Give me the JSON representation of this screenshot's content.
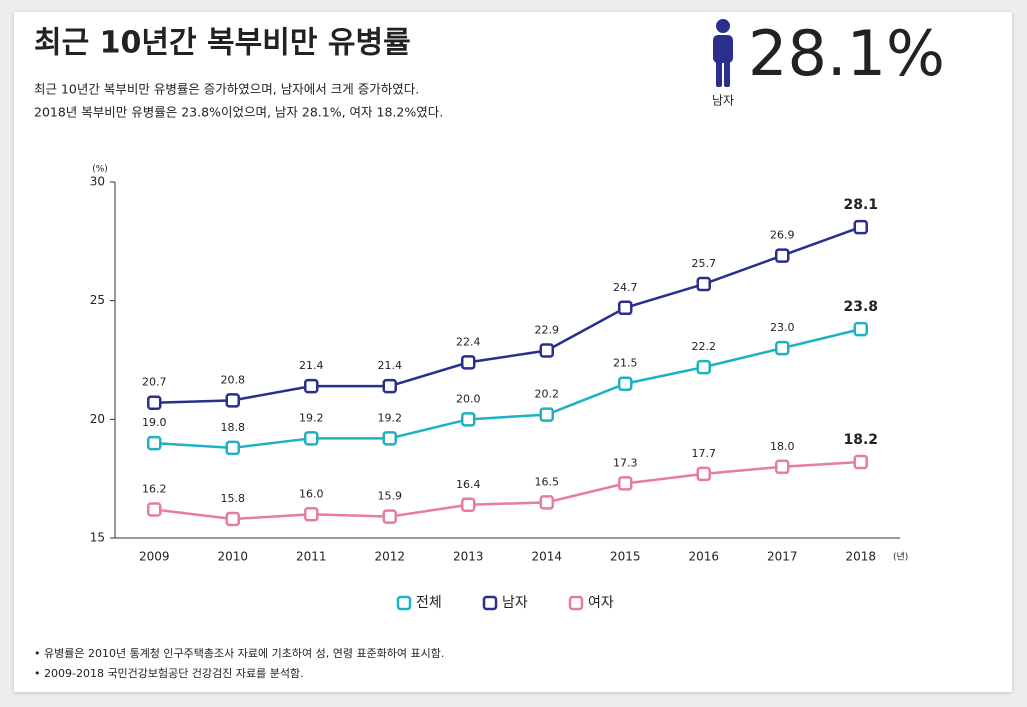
{
  "chart_data": {
    "type": "line",
    "title": "최근 10년간 복부비만 유병률",
    "subtitle": [
      "최근 10년간 복부비만 유병률은 증가하였으며, 남자에서 크게 증가하였다.",
      "2018년 복부비만 유병률은 23.8%이었으며, 남자 28.1%, 여자 18.2%였다."
    ],
    "y_unit": "(%)",
    "x_unit": "(년)",
    "categories": [
      "2009",
      "2010",
      "2011",
      "2012",
      "2013",
      "2014",
      "2015",
      "2016",
      "2017",
      "2018"
    ],
    "series": [
      {
        "name": "전체",
        "color": "#1fb1c2",
        "values": [
          19.0,
          18.8,
          19.2,
          19.2,
          20.0,
          20.2,
          21.5,
          22.2,
          23.0,
          23.8
        ],
        "value_labels": [
          "19.0",
          "18.8",
          "19.2",
          "19.2",
          "20.0",
          "20.2",
          "21.5",
          "22.2",
          "23.0",
          "23.8"
        ]
      },
      {
        "name": "남자",
        "color": "#2a2e8c",
        "values": [
          20.7,
          20.8,
          21.4,
          21.4,
          22.4,
          22.9,
          24.7,
          25.7,
          26.9,
          28.1
        ],
        "value_labels": [
          "20.7",
          "20.8",
          "21.4",
          "21.4",
          "22.4",
          "22.9",
          "24.7",
          "25.7",
          "26.9",
          "28.1"
        ]
      },
      {
        "name": "여자",
        "color": "#e77ba6",
        "values": [
          16.2,
          15.8,
          16.0,
          15.9,
          16.4,
          16.5,
          17.3,
          17.7,
          18.0,
          18.2
        ],
        "value_labels": [
          "16.2",
          "15.8",
          "16.0",
          "15.9",
          "16.4",
          "16.5",
          "17.3",
          "17.7",
          "18.0",
          "18.2"
        ]
      }
    ],
    "ylim": [
      15,
      30
    ],
    "yticks": [
      15,
      20,
      25,
      30
    ],
    "grid": false
  },
  "headline": {
    "value_label": "28.1%",
    "label": "남자"
  },
  "notes": [
    "• 유병률은 2010년 통계청 인구주택총조사 자료에 기초하여 성, 연령 표준화하여 표시함.",
    "• 2009-2018 국민건강보험공단 건강검진 자료를 분석함."
  ]
}
